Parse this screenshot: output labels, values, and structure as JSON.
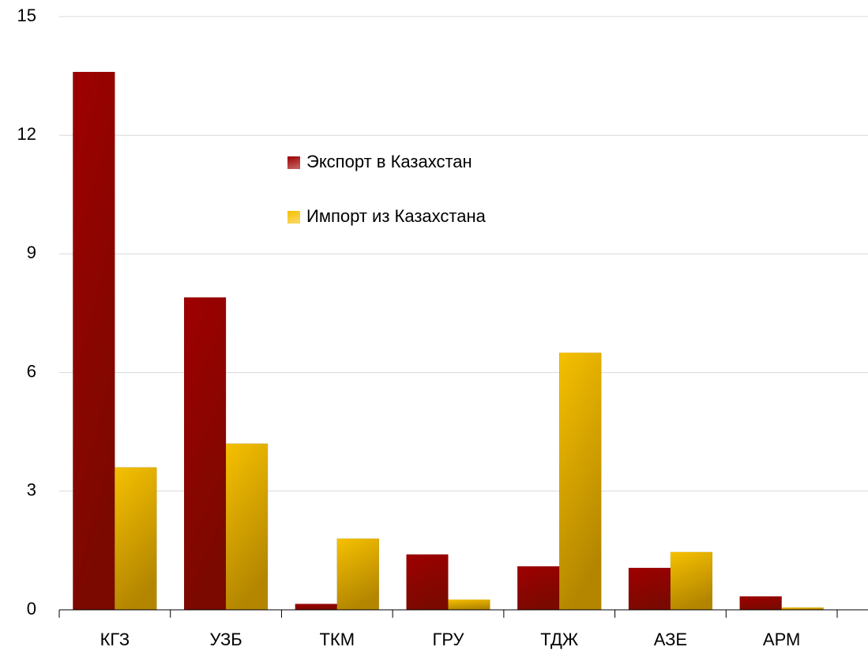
{
  "chart_data": {
    "type": "bar",
    "categories": [
      "КГЗ",
      "УЗБ",
      "ТКМ",
      "ГРУ",
      "ТДЖ",
      "АЗЕ",
      "АРМ"
    ],
    "series": [
      {
        "name": "Экспорт в Казахстан",
        "color": "#9e0000",
        "values": [
          13.6,
          7.9,
          0.15,
          1.4,
          1.1,
          1.06,
          0.34
        ]
      },
      {
        "name": "Импорт из Казахстана",
        "color": "#f5c000",
        "values": [
          3.6,
          4.2,
          1.8,
          0.26,
          6.5,
          1.46,
          0.06
        ]
      }
    ],
    "ylim": [
      0,
      15
    ],
    "yticks": [
      0,
      3,
      6,
      9,
      12,
      15
    ],
    "grid": true
  }
}
